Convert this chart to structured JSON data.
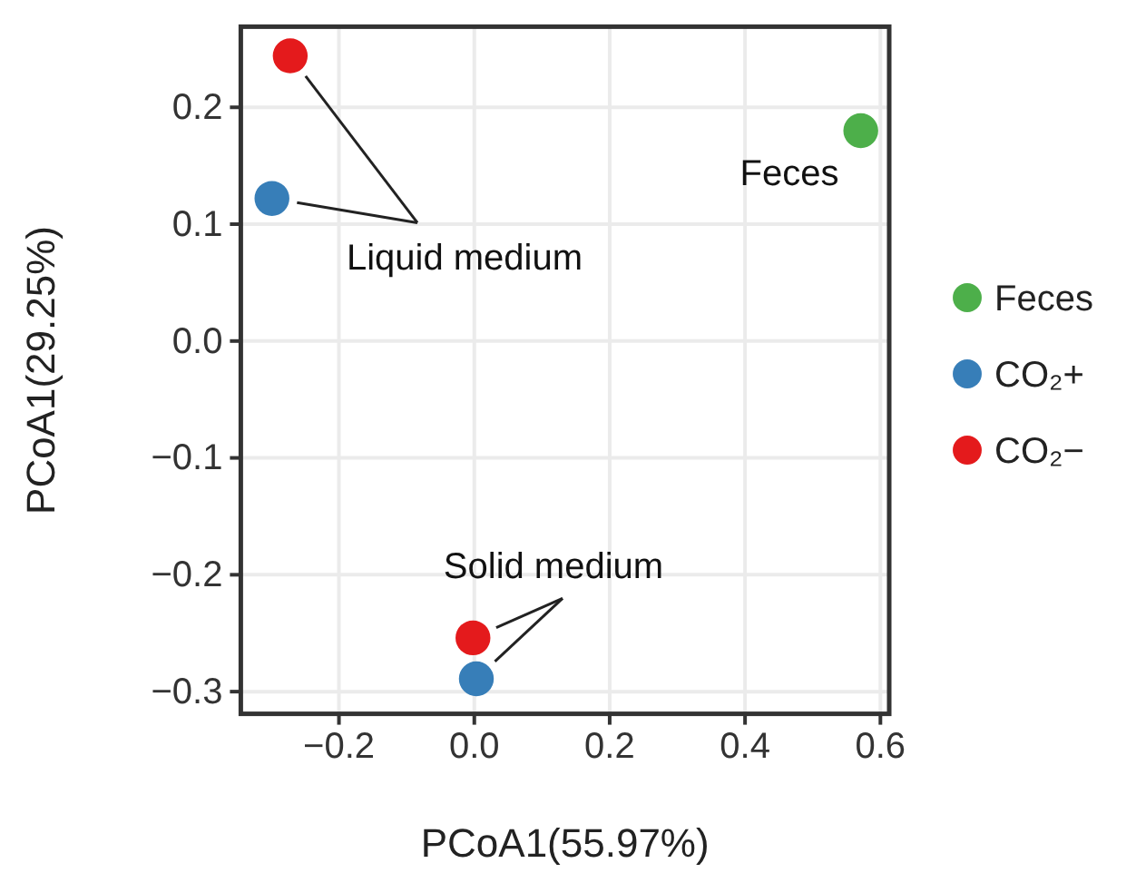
{
  "chart_data": {
    "type": "scatter",
    "xlabel": "PCoA1(55.97%)",
    "ylabel": "PCoA1(29.25%)",
    "xlim": [
      -0.345,
      0.613
    ],
    "xticks": [
      {
        "value": -0.2,
        "label": "−0.2"
      },
      {
        "value": 0,
        "label": "0.0"
      },
      {
        "value": 0.2,
        "label": "0.2"
      },
      {
        "value": 0.4,
        "label": "0.4"
      },
      {
        "value": 0.6,
        "label": "0.6"
      }
    ],
    "ylim": [
      -0.319,
      0.269
    ],
    "yticks": [
      {
        "value": -0.3,
        "label": "−0.3"
      },
      {
        "value": -0.2,
        "label": "−0.2"
      },
      {
        "value": -0.1,
        "label": "−0.1"
      },
      {
        "value": 0,
        "label": "0.0"
      },
      {
        "value": 0.1,
        "label": "0.1"
      },
      {
        "value": 0.2,
        "label": "0.2"
      }
    ],
    "grid": true,
    "legend": "right",
    "marker": "circle",
    "series": [
      {
        "name": "Feces",
        "color": "#4daf4a",
        "x": [
          0.571
        ],
        "values": [
          0.18
        ]
      },
      {
        "name": "CO₂+",
        "color": "#377eb8",
        "x": [
          -0.299,
          0.003
        ],
        "values": [
          0.122,
          -0.289
        ]
      },
      {
        "name": "CO₂−",
        "color": "#e41a1c",
        "x": [
          -0.272,
          -0.002
        ],
        "values": [
          0.244,
          -0.254
        ]
      }
    ],
    "annotations": [
      "Feces",
      "Liquid medium",
      "Solid medium"
    ]
  }
}
